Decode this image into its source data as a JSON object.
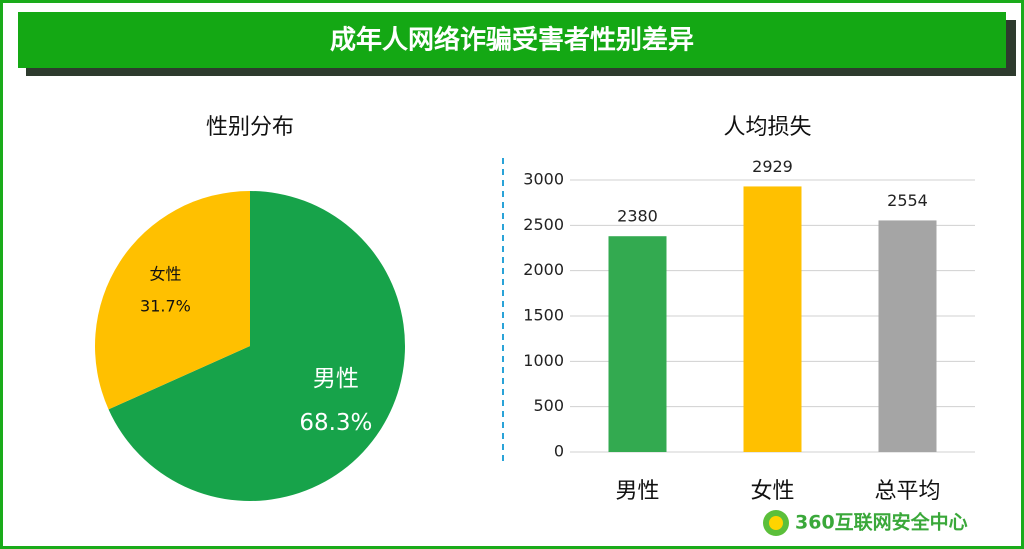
{
  "title": "成年人网络诈骗受害者性别差异",
  "footer": "360互联网安全中心",
  "chart_data": [
    {
      "type": "pie",
      "title": "性别分布",
      "categories": [
        "男性",
        "女性"
      ],
      "values": [
        68.3,
        31.7
      ],
      "value_labels": [
        "68.3%",
        "31.7%"
      ],
      "colors": [
        "#17a34a",
        "#ffc000"
      ]
    },
    {
      "type": "bar",
      "title": "人均损失",
      "categories": [
        "男性",
        "女性",
        "总平均"
      ],
      "values": [
        2380,
        2929,
        2554
      ],
      "colors": [
        "#33aa50",
        "#ffc000",
        "#a5a5a5"
      ],
      "ylim": [
        0,
        3000
      ],
      "yticks": [
        0,
        500,
        1000,
        1500,
        2000,
        2500,
        3000
      ],
      "grid": true
    }
  ]
}
